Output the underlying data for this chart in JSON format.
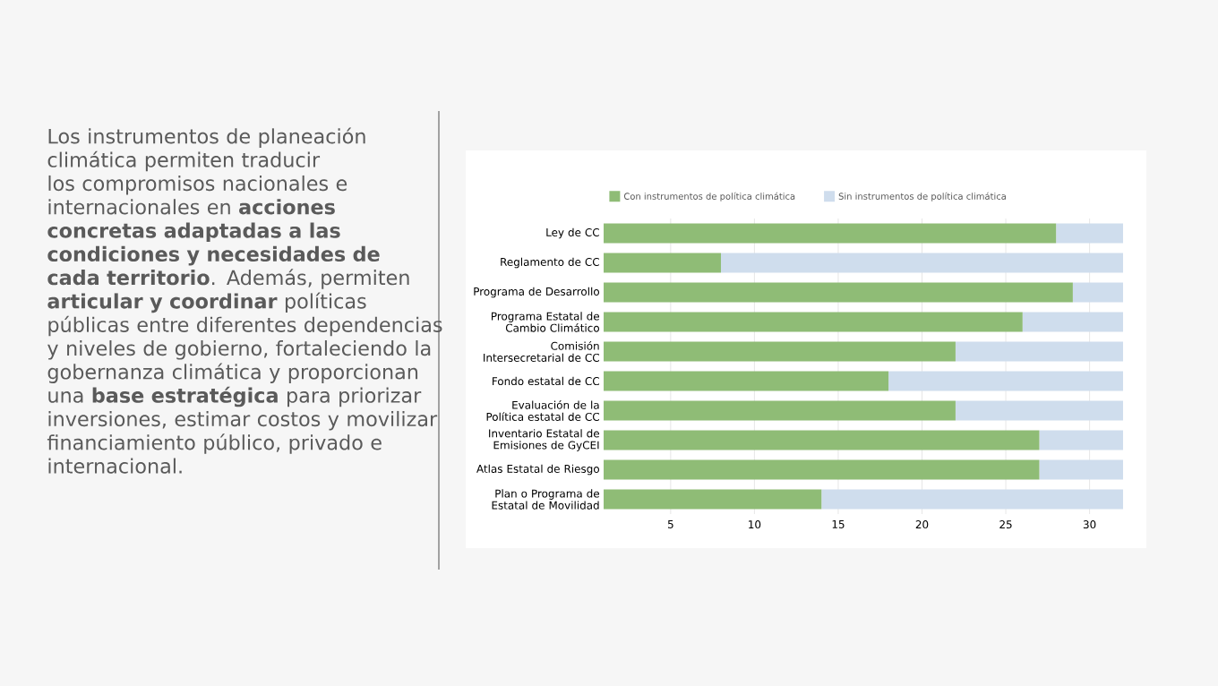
{
  "chart_data": {
    "type": "bar",
    "orientation": "horizontal",
    "stacked": true,
    "categories": [
      "Ley de CC",
      "Reglamento de CC",
      "Programa de Desarrollo",
      "Programa Estatal de Cambio Climático",
      "Comisión Intersecretarial de CC",
      "Fondo estatal de CC",
      "Evaluación de la Política estatal de CC",
      "Inventario Estatal de Emisiones de GyCEI",
      "Atlas Estatal de Riesgo",
      "Plan o Programa de Estatal de Movilidad"
    ],
    "series": [
      {
        "name": "Con instrumentos de política climática",
        "color": "#8fbc76",
        "values": [
          28,
          8,
          29,
          26,
          22,
          18,
          22,
          27,
          27,
          14
        ]
      },
      {
        "name": "Sin instrumentos de política climática",
        "color": "#cfdded",
        "values": [
          4,
          24,
          3,
          6,
          10,
          14,
          10,
          5,
          5,
          18
        ]
      }
    ],
    "xlim": [
      1,
      32
    ],
    "xticks": [
      5,
      10,
      15,
      20,
      25,
      30
    ],
    "grid": "x",
    "legend": "top",
    "annotations": [
      "Los instrumentos de planeación climática permiten traducir los compromisos nacionales e internacionales en **acciones concretas adaptadas a las condiciones y necesidades de cada territorio**. Además, permiten **articular y coordinar** políticas públicas entre diferentes dependencias y niveles de gobierno, fortaleciendo la gobernanza climática y proporcionan una **base estratégica** para priorizar inversiones, estimar costos y movilizar financiamiento público, privado e internacional."
    ]
  }
}
